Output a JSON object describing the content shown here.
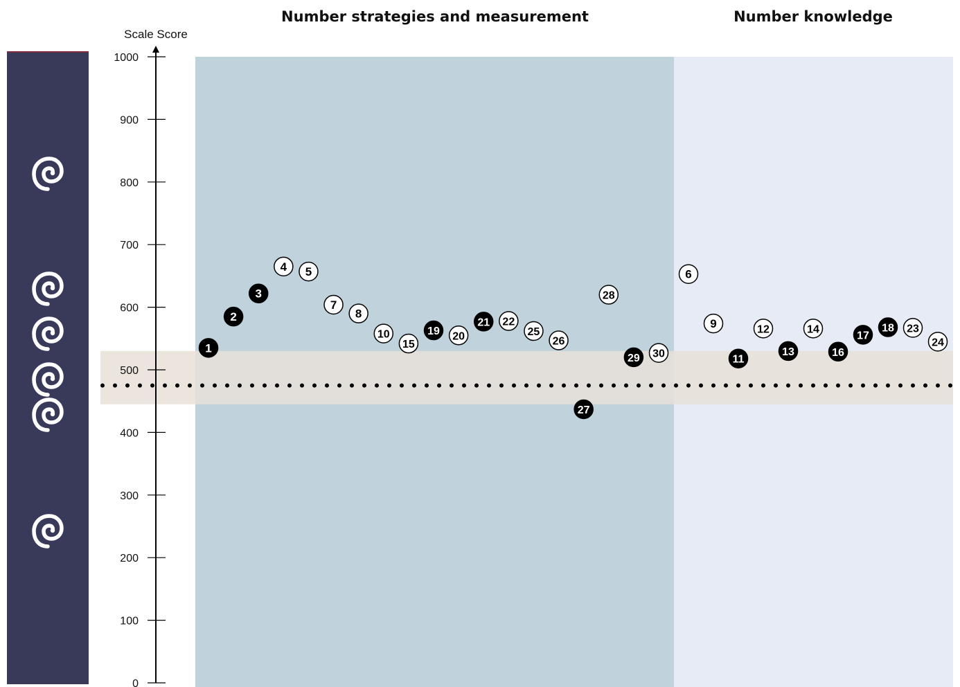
{
  "chart_data": {
    "type": "scatter",
    "ylabel": "Scale Score",
    "ylim": [
      0,
      1000
    ],
    "yticks": [
      0,
      100,
      200,
      300,
      400,
      500,
      600,
      700,
      800,
      900,
      1000
    ],
    "sections": [
      {
        "title": "Number strategies and measurement",
        "color": "#c0d2dc"
      },
      {
        "title": "Number knowledge",
        "color": "#e6ebf5"
      }
    ],
    "reference_line": {
      "value": 475,
      "band": [
        445,
        530
      ],
      "band_color": "#e8e0d8",
      "style": "dotted"
    },
    "marker_colors": {
      "filled": "#000000",
      "open": "#ffffff"
    },
    "points": [
      {
        "label": "1",
        "y": 535,
        "filled": true,
        "section": 0
      },
      {
        "label": "2",
        "y": 585,
        "filled": true,
        "section": 0
      },
      {
        "label": "3",
        "y": 622,
        "filled": true,
        "section": 0
      },
      {
        "label": "4",
        "y": 665,
        "filled": false,
        "section": 0
      },
      {
        "label": "5",
        "y": 657,
        "filled": false,
        "section": 0
      },
      {
        "label": "7",
        "y": 604,
        "filled": false,
        "section": 0
      },
      {
        "label": "8",
        "y": 590,
        "filled": false,
        "section": 0
      },
      {
        "label": "10",
        "y": 558,
        "filled": false,
        "section": 0
      },
      {
        "label": "15",
        "y": 542,
        "filled": false,
        "section": 0
      },
      {
        "label": "19",
        "y": 563,
        "filled": true,
        "section": 0
      },
      {
        "label": "20",
        "y": 555,
        "filled": false,
        "section": 0
      },
      {
        "label": "21",
        "y": 577,
        "filled": true,
        "section": 0
      },
      {
        "label": "22",
        "y": 578,
        "filled": false,
        "section": 0
      },
      {
        "label": "25",
        "y": 562,
        "filled": false,
        "section": 0
      },
      {
        "label": "26",
        "y": 547,
        "filled": false,
        "section": 0
      },
      {
        "label": "27",
        "y": 437,
        "filled": true,
        "section": 0
      },
      {
        "label": "28",
        "y": 620,
        "filled": false,
        "section": 0
      },
      {
        "label": "29",
        "y": 520,
        "filled": true,
        "section": 0
      },
      {
        "label": "30",
        "y": 527,
        "filled": false,
        "section": 0
      },
      {
        "label": "6",
        "y": 653,
        "filled": false,
        "section": 1
      },
      {
        "label": "9",
        "y": 574,
        "filled": false,
        "section": 1
      },
      {
        "label": "11",
        "y": 518,
        "filled": true,
        "section": 1
      },
      {
        "label": "12",
        "y": 566,
        "filled": false,
        "section": 1
      },
      {
        "label": "13",
        "y": 530,
        "filled": true,
        "section": 1
      },
      {
        "label": "14",
        "y": 566,
        "filled": false,
        "section": 1
      },
      {
        "label": "16",
        "y": 529,
        "filled": true,
        "section": 1
      },
      {
        "label": "17",
        "y": 556,
        "filled": true,
        "section": 1
      },
      {
        "label": "18",
        "y": 568,
        "filled": true,
        "section": 1
      },
      {
        "label": "23",
        "y": 567,
        "filled": false,
        "section": 1
      },
      {
        "label": "24",
        "y": 545,
        "filled": false,
        "section": 1
      }
    ]
  },
  "sidebar": {
    "color": "#393a5a",
    "icons": [
      {
        "name": "koru-icon-1",
        "score": 815
      },
      {
        "name": "koru-icon-2",
        "score": 632
      },
      {
        "name": "koru-icon-3",
        "score": 560
      },
      {
        "name": "koru-icon-4",
        "score": 487
      },
      {
        "name": "koru-icon-5",
        "score": 430
      },
      {
        "name": "koru-icon-6",
        "score": 245
      }
    ]
  }
}
